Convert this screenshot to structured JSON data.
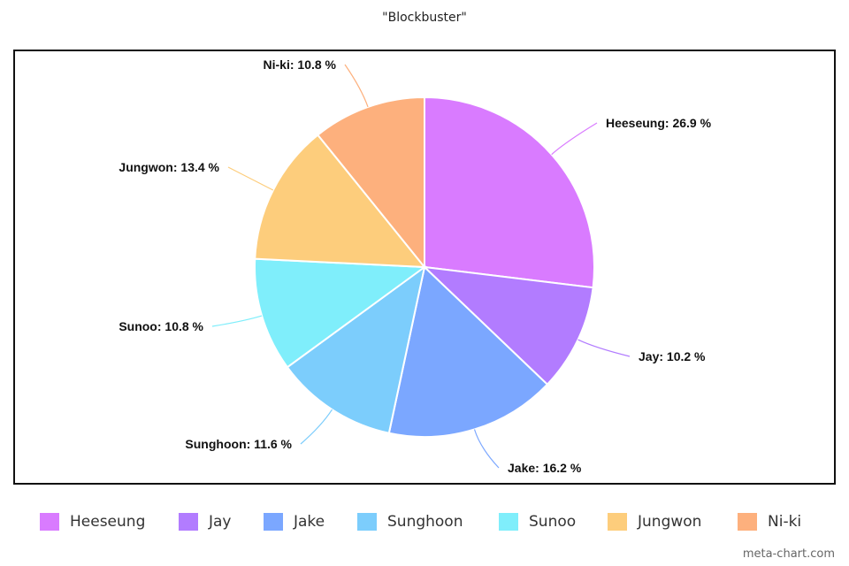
{
  "title": "\"Blockbuster\"",
  "watermark": "meta-chart.com",
  "chart_data": {
    "type": "pie",
    "title": "\"Blockbuster\"",
    "legend_position": "bottom",
    "slices": [
      {
        "label": "Heeseung",
        "value": 26.9,
        "display": "Heeseung: 26.9 %",
        "color": "#d97bff"
      },
      {
        "label": "Jay",
        "value": 10.2,
        "display": "Jay: 10.2 %",
        "color": "#b27cff"
      },
      {
        "label": "Jake",
        "value": 16.2,
        "display": "Jake: 16.2 %",
        "color": "#7ba7ff"
      },
      {
        "label": "Sunghoon",
        "value": 11.6,
        "display": "Sunghoon: 11.6 %",
        "color": "#7ccdfc"
      },
      {
        "label": "Sunoo",
        "value": 10.8,
        "display": "Sunoo: 10.8 %",
        "color": "#7feefb"
      },
      {
        "label": "Jungwon",
        "value": 13.4,
        "display": "Jungwon: 13.4 %",
        "color": "#fdcd7c"
      },
      {
        "label": "Ni-ki",
        "value": 10.8,
        "display": "Ni-ki: 10.8 %",
        "color": "#fdb07d"
      }
    ]
  }
}
